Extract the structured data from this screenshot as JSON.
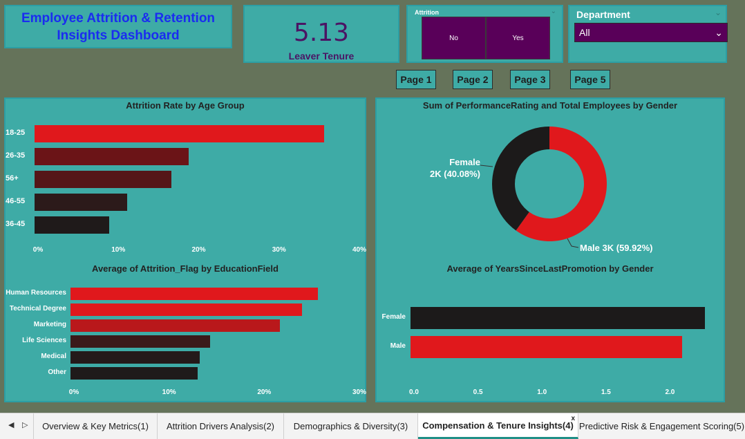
{
  "header": {
    "title": "Employee Attrition & Retention\nInsights Dashboard"
  },
  "kpi": {
    "value": "5.13",
    "label": "Leaver Tenure"
  },
  "attrition_slicer": {
    "label": "Attrition",
    "options": [
      "No",
      "Yes"
    ]
  },
  "department_slicer": {
    "label": "Department",
    "selected": "All"
  },
  "page_buttons": [
    "Page 1",
    "Page 2",
    "Page 3",
    "Page 5"
  ],
  "chart_data": [
    {
      "type": "bar",
      "title": "Attrition Rate by Age Group",
      "categories": [
        "18-25",
        "26-35",
        "56+",
        "46-55",
        "36-45"
      ],
      "values": [
        36,
        19.2,
        17,
        11.5,
        9.3
      ],
      "unit": "%",
      "xlim": [
        0,
        40
      ],
      "xticks": [
        "0%",
        "10%",
        "20%",
        "30%",
        "40%"
      ],
      "colors": [
        "#e0181c",
        "#6b1417",
        "#551618",
        "#2c1a1a",
        "#1f1a1a"
      ]
    },
    {
      "type": "pie",
      "title": "Sum of PerformanceRating and Total Employees by Gender",
      "categories": [
        "Female",
        "Male"
      ],
      "values": [
        40.08,
        59.92
      ],
      "labels": [
        "Female\n2K (40.08%)",
        "Male 3K (59.92%)"
      ],
      "colors": [
        "#1c1a1a",
        "#e0181c"
      ]
    },
    {
      "type": "bar",
      "title": "Average of Attrition_Flag by EducationField",
      "categories": [
        "Human Resources",
        "Technical Degree",
        "Marketing",
        "Life Sciences",
        "Medical",
        "Other"
      ],
      "values": [
        26,
        24.3,
        22,
        14.7,
        13.6,
        13.4
      ],
      "unit": "%",
      "xlim": [
        0,
        30
      ],
      "xticks": [
        "0%",
        "10%",
        "20%",
        "30%"
      ],
      "colors": [
        "#e0181c",
        "#e0181c",
        "#b9181b",
        "#3b1a1a",
        "#241a1a",
        "#1f1a1a"
      ]
    },
    {
      "type": "bar",
      "title": "Average of YearsSinceLastPromotion by Gender",
      "categories": [
        "Female",
        "Male"
      ],
      "values": [
        2.3,
        2.12
      ],
      "xlim": [
        0,
        2.3
      ],
      "xticks": [
        "0.0",
        "0.5",
        "1.0",
        "1.5",
        "2.0"
      ],
      "colors": [
        "#1c1a1a",
        "#e0181c"
      ]
    }
  ],
  "tabs": [
    "Overview & Key Metrics(1)",
    "Attrition Drivers Analysis(2)",
    "Demographics & Diversity(3)",
    "Compensation & Tenure Insights(4)",
    "Predictive Risk & Engagement Scoring(5)"
  ],
  "tab_close_glyph": "x",
  "nav": {
    "prev": "◀",
    "next": "▷"
  }
}
